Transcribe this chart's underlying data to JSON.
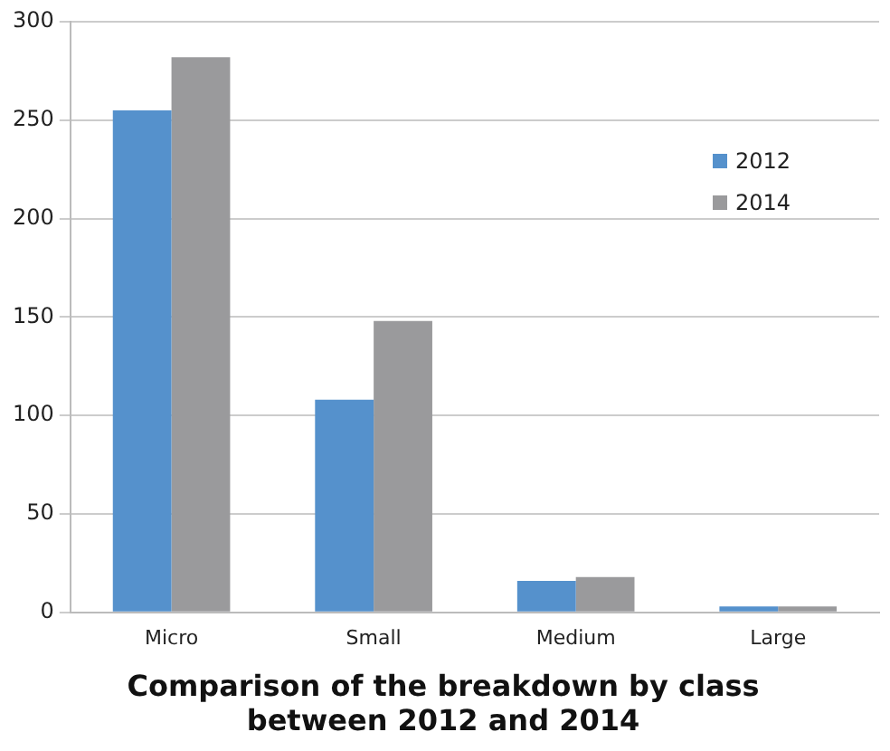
{
  "chart_data": {
    "type": "bar",
    "title": [
      "Comparison of the breakdown by class",
      "between 2012 and 2014"
    ],
    "categories": [
      "Micro",
      "Small",
      "Medium",
      "Large"
    ],
    "series": [
      {
        "name": "2012",
        "color": "#5591cc",
        "values": [
          255,
          108,
          16,
          3
        ]
      },
      {
        "name": "2014",
        "color": "#9a9a9c",
        "values": [
          282,
          148,
          18,
          3
        ]
      }
    ],
    "ylim": [
      0,
      300
    ],
    "yticks": [
      0,
      50,
      100,
      150,
      200,
      250,
      300
    ],
    "grid": "y",
    "legend": "top right"
  }
}
